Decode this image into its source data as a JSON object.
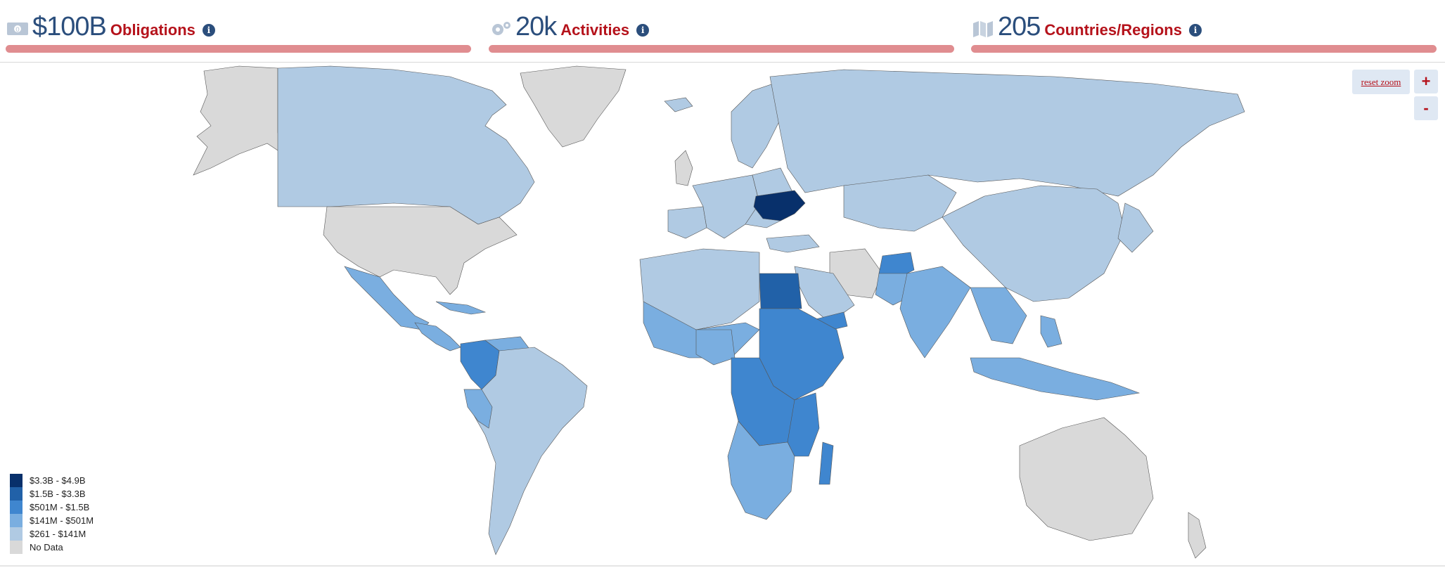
{
  "stats": [
    {
      "icon": "money-icon",
      "value": "$100B",
      "label": "Obligations"
    },
    {
      "icon": "gears-icon",
      "value": "20k",
      "label": "Activities"
    },
    {
      "icon": "map-icon",
      "value": "205",
      "label": "Countries/Regions"
    }
  ],
  "zoom": {
    "reset_label": "reset zoom",
    "zoom_in_label": "+",
    "zoom_out_label": "-"
  },
  "legend": [
    {
      "label": "$3.3B - $4.9B",
      "color": "#08306b"
    },
    {
      "label": "$1.5B - $3.3B",
      "color": "#2161a8"
    },
    {
      "label": "$501M - $1.5B",
      "color": "#3f86cf"
    },
    {
      "label": "$141M - $501M",
      "color": "#7aaee0"
    },
    {
      "label": "$261 - $141M",
      "color": "#b0cae3"
    },
    {
      "label": "No Data",
      "color": "#d9d9d9"
    }
  ],
  "map_colors": {
    "nodata": "#d9d9d9",
    "tier1": "#08306b",
    "tier2": "#2161a8",
    "tier3": "#3f86cf",
    "tier4": "#7aaee0",
    "tier5": "#b0cae3"
  }
}
